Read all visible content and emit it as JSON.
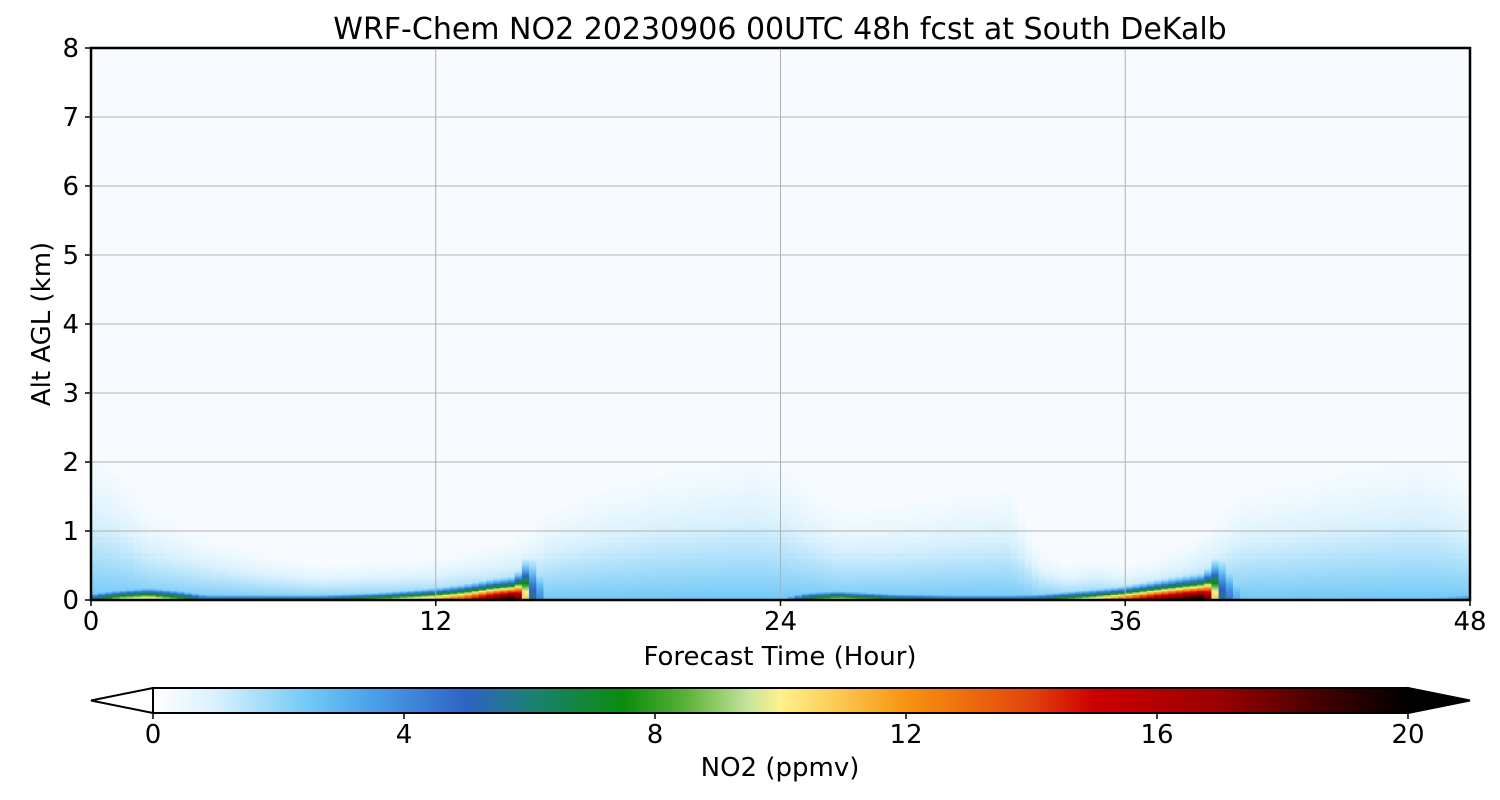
{
  "chart_data": {
    "type": "heatmap",
    "title": "WRF-Chem NO2  20230906 00UTC 48h fcst at South DeKalb",
    "xlabel": "Forecast Time (Hour)",
    "ylabel": "Alt AGL (km)",
    "xlim": [
      0,
      48
    ],
    "ylim": [
      0,
      8
    ],
    "x_ticks": [
      0,
      12,
      24,
      36,
      48
    ],
    "y_ticks": [
      0,
      1,
      2,
      3,
      4,
      5,
      6,
      7,
      8
    ],
    "grid": true,
    "z_units": "ppmv",
    "colorbar": {
      "label": "NO2  (ppmv)",
      "range": [
        0,
        20
      ],
      "ticks": [
        0,
        4,
        8,
        12,
        16,
        20
      ],
      "extend": "both",
      "orientation": "horizontal",
      "placement": "bottom",
      "color_stops": [
        {
          "v": 0,
          "c": "#ffffff"
        },
        {
          "v": 1,
          "c": "#d9f1fd"
        },
        {
          "v": 2.5,
          "c": "#70c8f6"
        },
        {
          "v": 3.5,
          "c": "#4aa0e8"
        },
        {
          "v": 5,
          "c": "#2f63c4"
        },
        {
          "v": 6,
          "c": "#1c8077"
        },
        {
          "v": 7.5,
          "c": "#0a8c0e"
        },
        {
          "v": 8.5,
          "c": "#5cb239"
        },
        {
          "v": 9.5,
          "c": "#c7e49c"
        },
        {
          "v": 10,
          "c": "#fff18c"
        },
        {
          "v": 11,
          "c": "#fbc54f"
        },
        {
          "v": 12,
          "c": "#f7940f"
        },
        {
          "v": 14,
          "c": "#e2430d"
        },
        {
          "v": 15,
          "c": "#cc0000"
        },
        {
          "v": 17,
          "c": "#990000"
        },
        {
          "v": 19,
          "c": "#300000"
        },
        {
          "v": 20,
          "c": "#000000"
        }
      ]
    },
    "boundary_layer_profile": {
      "description_units": "x in forecast hours, top in km, peak in ppmv",
      "x": [
        0,
        1,
        2,
        3,
        4,
        6,
        8,
        10,
        12,
        13,
        14,
        14.8,
        15.3,
        16,
        18,
        20,
        22,
        23,
        24,
        25,
        26,
        28,
        30,
        32,
        33,
        34,
        35,
        36,
        37,
        38,
        38.8,
        39.3,
        40,
        42,
        44,
        46,
        47,
        48
      ],
      "top_km": [
        2.1,
        1.8,
        1.3,
        1.1,
        0.9,
        0.65,
        0.5,
        0.55,
        0.6,
        0.7,
        0.8,
        0.9,
        1.0,
        1.3,
        1.6,
        1.85,
        2.0,
        2.05,
        1.95,
        1.6,
        1.3,
        1.35,
        1.5,
        1.6,
        0.7,
        0.5,
        0.6,
        0.5,
        0.6,
        0.8,
        1.0,
        1.2,
        1.5,
        1.7,
        1.9,
        2.05,
        2.0,
        1.7
      ],
      "surface_peak_ppmv": [
        6,
        10,
        11,
        9,
        6,
        7,
        7,
        9,
        12,
        14,
        18,
        20,
        6,
        1.5,
        1.4,
        1.3,
        1.3,
        1.3,
        2,
        8,
        10,
        8,
        7,
        7,
        7,
        9,
        11,
        14,
        17,
        19,
        20,
        6,
        2.5,
        2.5,
        2.5,
        2.5,
        3,
        4
      ],
      "surface_layer_km": [
        0.1,
        0.12,
        0.14,
        0.12,
        0.08,
        0.07,
        0.07,
        0.09,
        0.13,
        0.16,
        0.2,
        0.22,
        0.5,
        0.25,
        0.1,
        0.08,
        0.08,
        0.08,
        0.08,
        0.1,
        0.11,
        0.08,
        0.07,
        0.07,
        0.08,
        0.1,
        0.12,
        0.14,
        0.18,
        0.22,
        0.25,
        0.5,
        0.3,
        0.15,
        0.12,
        0.12,
        0.12,
        0.12
      ]
    }
  }
}
